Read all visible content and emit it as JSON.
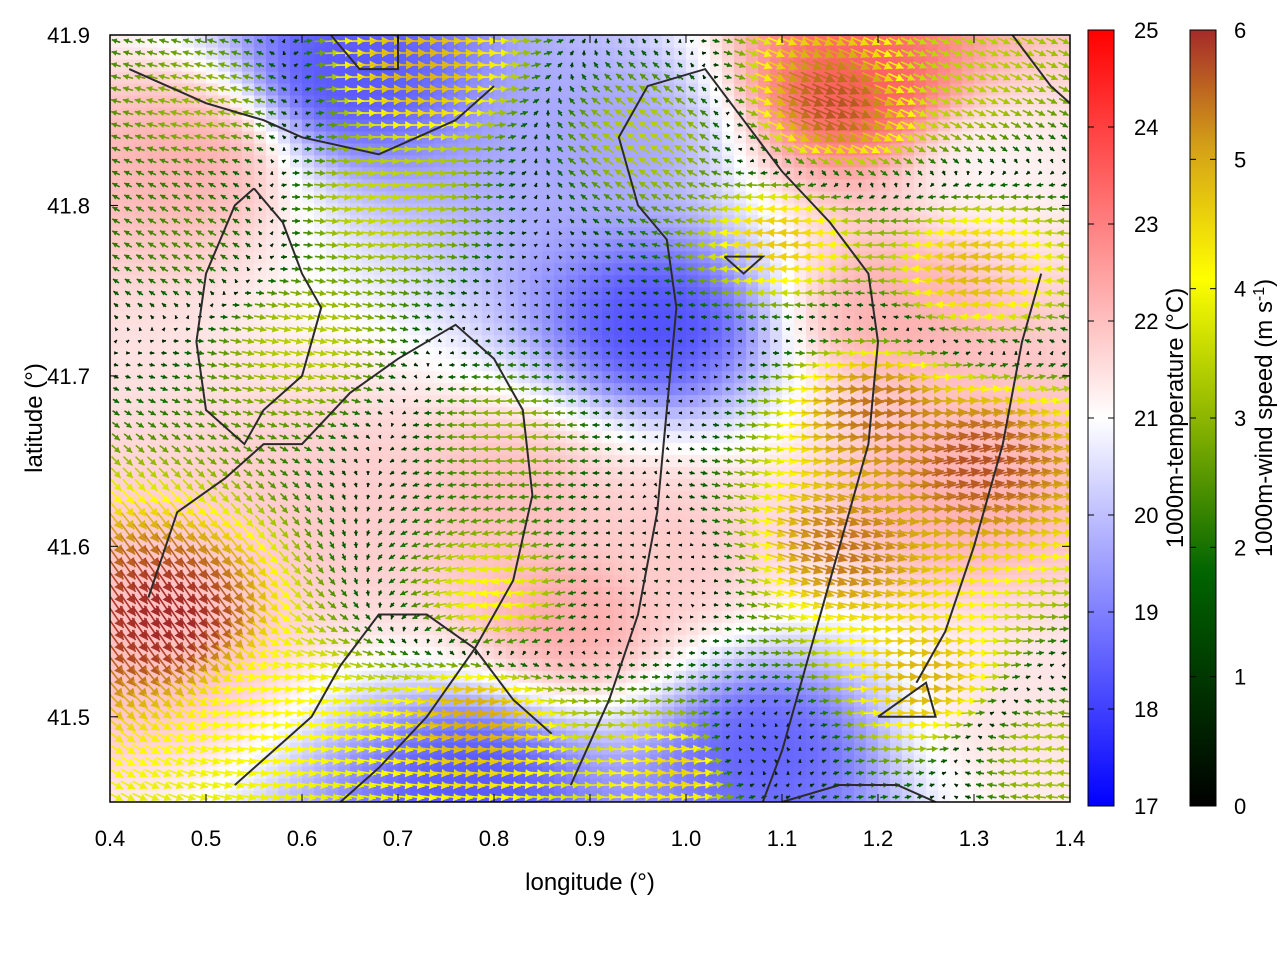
{
  "chart_data": {
    "type": "heatmap",
    "xlabel": "longitude (°)",
    "ylabel": "latitude (°)",
    "xlim": [
      0.4,
      1.4
    ],
    "ylim": [
      41.45,
      41.9
    ],
    "xticks": [
      "0.4",
      "0.5",
      "0.6",
      "0.7",
      "0.8",
      "0.9",
      "1.0",
      "1.1",
      "1.2",
      "1.3",
      "1.4"
    ],
    "yticks": [
      "41.5",
      "41.6",
      "41.7",
      "41.8",
      "41.9"
    ],
    "temperature_scale": {
      "label": "1000m-temperature (°C)",
      "range": [
        17,
        25
      ],
      "ticks": [
        "17",
        "18",
        "19",
        "20",
        "21",
        "22",
        "23",
        "24",
        "25"
      ],
      "colors": [
        "#0000ff",
        "#ffffff",
        "#ff0000"
      ]
    },
    "wind_scale": {
      "label_main": "1000m-wind speed (m s",
      "label_sup": "-1",
      "label_end": ")",
      "range": [
        0,
        6
      ],
      "ticks": [
        "0",
        "1",
        "2",
        "3",
        "4",
        "5",
        "6"
      ],
      "colors": [
        "#000000",
        "#006400",
        "#8db600",
        "#ffff00",
        "#d4a017",
        "#a52a2a"
      ]
    },
    "temperature_features": [
      {
        "lon": 0.48,
        "lat": 41.83,
        "temp": 22.2
      },
      {
        "lon": 0.65,
        "lat": 41.88,
        "temp": 18.4
      },
      {
        "lon": 0.62,
        "lat": 41.62,
        "temp": 21.8
      },
      {
        "lon": 0.82,
        "lat": 41.63,
        "temp": 22.0
      },
      {
        "lon": 0.97,
        "lat": 41.73,
        "temp": 18.3
      },
      {
        "lon": 0.92,
        "lat": 41.84,
        "temp": 19.6
      },
      {
        "lon": 0.88,
        "lat": 41.56,
        "temp": 22.3
      },
      {
        "lon": 0.98,
        "lat": 41.6,
        "temp": 21.8
      },
      {
        "lon": 0.78,
        "lat": 41.46,
        "temp": 18.4
      },
      {
        "lon": 1.08,
        "lat": 41.48,
        "temp": 18.6
      },
      {
        "lon": 1.18,
        "lat": 41.87,
        "temp": 23.5
      },
      {
        "lon": 1.22,
        "lat": 41.74,
        "temp": 22.2
      },
      {
        "lon": 1.28,
        "lat": 41.63,
        "temp": 22.2
      },
      {
        "lon": 1.32,
        "lat": 41.82,
        "temp": 21.2
      },
      {
        "lon": 0.45,
        "lat": 41.55,
        "temp": 22.0
      },
      {
        "lon": 1.35,
        "lat": 41.5,
        "temp": 21.4
      }
    ],
    "wind_features": [
      {
        "lon": 0.46,
        "lat": 41.56,
        "u": 3.4,
        "v": -5.0
      },
      {
        "lon": 0.48,
        "lat": 41.78,
        "u": -1.6,
        "v": 0.9
      },
      {
        "lon": 0.5,
        "lat": 41.86,
        "u": -2.4,
        "v": 0.6
      },
      {
        "lon": 0.6,
        "lat": 41.72,
        "u": 2.8,
        "v": -0.6
      },
      {
        "lon": 0.68,
        "lat": 41.8,
        "u": 3.0,
        "v": -0.4
      },
      {
        "lon": 0.72,
        "lat": 41.88,
        "u": 4.6,
        "v": 0.1
      },
      {
        "lon": 0.82,
        "lat": 41.67,
        "u": -2.5,
        "v": 0.1
      },
      {
        "lon": 0.93,
        "lat": 41.71,
        "u": -0.5,
        "v": 0.1
      },
      {
        "lon": 0.96,
        "lat": 41.58,
        "u": -0.4,
        "v": 0.1
      },
      {
        "lon": 0.8,
        "lat": 41.57,
        "u": -3.6,
        "v": -0.6
      },
      {
        "lon": 0.78,
        "lat": 41.5,
        "u": 4.7,
        "v": -0.5
      },
      {
        "lon": 1.07,
        "lat": 41.48,
        "u": -0.6,
        "v": 0.3
      },
      {
        "lon": 1.1,
        "lat": 41.78,
        "u": -4.3,
        "v": 0.3
      },
      {
        "lon": 1.15,
        "lat": 41.86,
        "u": 5.2,
        "v": -2.2
      },
      {
        "lon": 1.2,
        "lat": 41.68,
        "u": 5.3,
        "v": -0.4
      },
      {
        "lon": 1.16,
        "lat": 41.6,
        "u": 5.0,
        "v": -1.6
      },
      {
        "lon": 1.3,
        "lat": 41.65,
        "u": 5.5,
        "v": 1.2
      },
      {
        "lon": 1.3,
        "lat": 41.76,
        "u": -4.5,
        "v": 0.5
      },
      {
        "lon": 1.28,
        "lat": 41.88,
        "u": 2.6,
        "v": -1.2
      },
      {
        "lon": 1.25,
        "lat": 41.52,
        "u": 4.6,
        "v": 0.2
      },
      {
        "lon": 0.96,
        "lat": 41.84,
        "u": -2.4,
        "v": 1.6
      },
      {
        "lon": 0.58,
        "lat": 41.5,
        "u": 3.6,
        "v": -0.4
      },
      {
        "lon": 1.0,
        "lat": 41.47,
        "u": 4.3,
        "v": 0.4
      },
      {
        "lon": 1.37,
        "lat": 41.48,
        "u": -2.8,
        "v": 0.3
      }
    ],
    "contours": [
      [
        [
          0.42,
          41.88
        ],
        [
          0.5,
          41.86
        ],
        [
          0.56,
          41.85
        ],
        [
          0.6,
          41.84
        ],
        [
          0.68,
          41.83
        ],
        [
          0.72,
          41.84
        ],
        [
          0.76,
          41.85
        ],
        [
          0.8,
          41.87
        ]
      ],
      [
        [
          0.55,
          41.81
        ],
        [
          0.58,
          41.79
        ],
        [
          0.6,
          41.76
        ],
        [
          0.62,
          41.74
        ],
        [
          0.6,
          41.7
        ],
        [
          0.56,
          41.68
        ],
        [
          0.54,
          41.66
        ],
        [
          0.5,
          41.68
        ],
        [
          0.49,
          41.72
        ],
        [
          0.5,
          41.76
        ],
        [
          0.53,
          41.8
        ],
        [
          0.55,
          41.81
        ]
      ],
      [
        [
          0.44,
          41.57
        ],
        [
          0.47,
          41.62
        ],
        [
          0.52,
          41.64
        ],
        [
          0.56,
          41.66
        ],
        [
          0.6,
          41.66
        ],
        [
          0.65,
          41.69
        ],
        [
          0.7,
          41.71
        ],
        [
          0.76,
          41.73
        ],
        [
          0.8,
          41.71
        ],
        [
          0.83,
          41.68
        ],
        [
          0.84,
          41.63
        ],
        [
          0.82,
          41.58
        ],
        [
          0.78,
          41.54
        ],
        [
          0.73,
          41.5
        ],
        [
          0.68,
          41.47
        ],
        [
          0.64,
          41.45
        ]
      ],
      [
        [
          0.53,
          41.46
        ],
        [
          0.57,
          41.48
        ],
        [
          0.61,
          41.5
        ],
        [
          0.64,
          41.53
        ],
        [
          0.68,
          41.56
        ],
        [
          0.73,
          41.56
        ],
        [
          0.78,
          41.54
        ],
        [
          0.82,
          41.51
        ],
        [
          0.86,
          41.49
        ]
      ],
      [
        [
          0.88,
          41.46
        ],
        [
          0.92,
          41.51
        ],
        [
          0.95,
          41.56
        ],
        [
          0.97,
          41.62
        ],
        [
          0.98,
          41.68
        ],
        [
          0.99,
          41.74
        ],
        [
          0.98,
          41.78
        ],
        [
          0.95,
          41.8
        ],
        [
          0.93,
          41.84
        ],
        [
          0.96,
          41.87
        ],
        [
          1.02,
          41.88
        ],
        [
          1.06,
          41.85
        ],
        [
          1.1,
          41.82
        ],
        [
          1.15,
          41.79
        ],
        [
          1.19,
          41.76
        ],
        [
          1.2,
          41.72
        ],
        [
          1.19,
          41.66
        ],
        [
          1.16,
          41.6
        ],
        [
          1.13,
          41.54
        ],
        [
          1.1,
          41.48
        ],
        [
          1.08,
          41.45
        ]
      ],
      [
        [
          1.1,
          41.45
        ],
        [
          1.16,
          41.46
        ],
        [
          1.22,
          41.46
        ],
        [
          1.26,
          41.45
        ]
      ],
      [
        [
          1.24,
          41.52
        ],
        [
          1.27,
          41.55
        ],
        [
          1.3,
          41.6
        ],
        [
          1.33,
          41.66
        ],
        [
          1.35,
          41.72
        ],
        [
          1.37,
          41.76
        ]
      ],
      [
        [
          1.2,
          41.5
        ],
        [
          1.25,
          41.52
        ],
        [
          1.26,
          41.5
        ],
        [
          1.2,
          41.5
        ]
      ],
      [
        [
          1.04,
          41.77
        ],
        [
          1.08,
          41.77
        ],
        [
          1.06,
          41.76
        ],
        [
          1.04,
          41.77
        ]
      ],
      [
        [
          0.63,
          41.9
        ],
        [
          0.66,
          41.88
        ],
        [
          0.7,
          41.88
        ],
        [
          0.7,
          41.9
        ]
      ],
      [
        [
          1.34,
          41.9
        ],
        [
          1.38,
          41.87
        ],
        [
          1.4,
          41.86
        ]
      ]
    ]
  }
}
